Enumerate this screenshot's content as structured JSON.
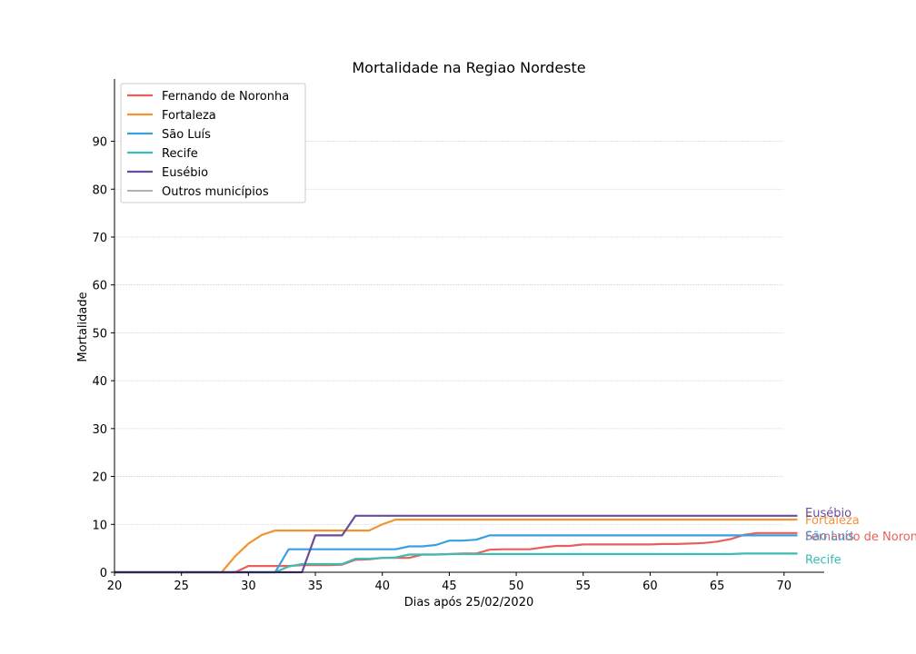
{
  "chart_data": {
    "type": "line",
    "title": "Mortalidade na Regiao Nordeste",
    "xlabel": "Dias após 25/02/2020",
    "ylabel": "Mortalidade",
    "xlim": [
      20,
      73
    ],
    "ylim": [
      0,
      103
    ],
    "xticks": [
      20,
      25,
      30,
      35,
      40,
      45,
      50,
      55,
      60,
      65,
      70
    ],
    "yticks": [
      0,
      10,
      20,
      30,
      40,
      50,
      60,
      70,
      80,
      90
    ],
    "grid": "horizontal",
    "legend_position": "top-left",
    "legend": [
      {
        "name": "Fernando de Noronha",
        "color": "#e8605a"
      },
      {
        "name": "Fortaleza",
        "color": "#f39433"
      },
      {
        "name": "São Luís",
        "color": "#3a9fdf"
      },
      {
        "name": "Recife",
        "color": "#3dbcb3"
      },
      {
        "name": "Eusébio",
        "color": "#6a4c9c"
      },
      {
        "name": "Outros municípios",
        "color": "#999999"
      }
    ],
    "series": [
      {
        "name": "Fernando de Noronha",
        "color": "#e8605a",
        "x": [
          20,
          21,
          22,
          23,
          24,
          25,
          26,
          27,
          28,
          29,
          30,
          31,
          32,
          33,
          34,
          35,
          36,
          37,
          38,
          39,
          40,
          41,
          42,
          43,
          44,
          45,
          46,
          47,
          48,
          49,
          50,
          51,
          52,
          53,
          54,
          55,
          56,
          57,
          58,
          59,
          60,
          61,
          62,
          63,
          64,
          65,
          66,
          67,
          68,
          69,
          70,
          71
        ],
        "y": [
          0,
          0,
          0,
          0,
          0,
          0,
          0,
          0,
          0,
          0,
          1.3,
          1.3,
          1.3,
          1.3,
          1.5,
          1.5,
          1.5,
          1.6,
          2.6,
          2.7,
          3.0,
          3.0,
          3.0,
          3.7,
          3.7,
          3.8,
          3.9,
          3.9,
          4.7,
          4.8,
          4.8,
          4.8,
          5.2,
          5.5,
          5.5,
          5.8,
          5.8,
          5.8,
          5.8,
          5.8,
          5.8,
          5.9,
          5.9,
          6.0,
          6.1,
          6.4,
          6.9,
          7.8,
          8.2,
          8.2,
          8.2,
          8.2
        ],
        "end_label": "Fernando de Noronha"
      },
      {
        "name": "Fortaleza",
        "color": "#f39433",
        "x": [
          20,
          21,
          22,
          23,
          24,
          25,
          26,
          27,
          28,
          29,
          30,
          31,
          32,
          33,
          34,
          35,
          36,
          37,
          38,
          39,
          40,
          41,
          42,
          43,
          44,
          45,
          46,
          47,
          48,
          49,
          50,
          51,
          52,
          53,
          54,
          55,
          56,
          57,
          58,
          59,
          60,
          61,
          62,
          63,
          64,
          65,
          66,
          67,
          68,
          69,
          70,
          71
        ],
        "y": [
          0,
          0,
          0,
          0,
          0,
          0,
          0,
          0,
          0,
          3.3,
          6.0,
          7.8,
          8.7,
          8.7,
          8.7,
          8.7,
          8.7,
          8.7,
          8.7,
          8.7,
          10.0,
          11.0,
          11.0,
          11.0,
          11.0,
          11.0,
          11.0,
          11.0,
          11.0,
          11.0,
          11.0,
          11.0,
          11.0,
          11.0,
          11.0,
          11.0,
          11.0,
          11.0,
          11.0,
          11.0,
          11.0,
          11.0,
          11.0,
          11.0,
          11.0,
          11.0,
          11.0,
          11.0,
          11.0,
          11.0,
          11.0,
          11.0
        ],
        "end_label": "Fortaleza"
      },
      {
        "name": "São Luís",
        "color": "#3a9fdf",
        "x": [
          20,
          21,
          22,
          23,
          24,
          25,
          26,
          27,
          28,
          29,
          30,
          31,
          32,
          33,
          34,
          35,
          36,
          37,
          38,
          39,
          40,
          41,
          42,
          43,
          44,
          45,
          46,
          47,
          48,
          49,
          50,
          51,
          52,
          53,
          54,
          55,
          56,
          57,
          58,
          59,
          60,
          61,
          62,
          63,
          64,
          65,
          66,
          67,
          68,
          69,
          70,
          71
        ],
        "y": [
          0,
          0,
          0,
          0,
          0,
          0,
          0,
          0,
          0,
          0,
          0,
          0,
          0,
          4.8,
          4.8,
          4.8,
          4.8,
          4.8,
          4.8,
          4.8,
          4.8,
          4.8,
          5.4,
          5.4,
          5.7,
          6.6,
          6.6,
          6.8,
          7.7,
          7.7,
          7.7,
          7.7,
          7.7,
          7.7,
          7.7,
          7.7,
          7.7,
          7.7,
          7.7,
          7.7,
          7.7,
          7.7,
          7.7,
          7.7,
          7.7,
          7.7,
          7.7,
          7.7,
          7.7,
          7.7,
          7.7,
          7.7
        ],
        "end_label": "São Luís"
      },
      {
        "name": "Recife",
        "color": "#3dbcb3",
        "x": [
          20,
          21,
          22,
          23,
          24,
          25,
          26,
          27,
          28,
          29,
          30,
          31,
          32,
          33,
          34,
          35,
          36,
          37,
          38,
          39,
          40,
          41,
          42,
          43,
          44,
          45,
          46,
          47,
          48,
          49,
          50,
          51,
          52,
          53,
          54,
          55,
          56,
          57,
          58,
          59,
          60,
          61,
          62,
          63,
          64,
          65,
          66,
          67,
          68,
          69,
          70,
          71
        ],
        "y": [
          0,
          0,
          0,
          0,
          0,
          0,
          0,
          0,
          0,
          0,
          0,
          0,
          0,
          1.2,
          1.7,
          1.7,
          1.7,
          1.7,
          2.8,
          2.8,
          3.0,
          3.1,
          3.7,
          3.7,
          3.7,
          3.8,
          3.8,
          3.8,
          3.8,
          3.8,
          3.8,
          3.8,
          3.8,
          3.8,
          3.8,
          3.8,
          3.8,
          3.8,
          3.8,
          3.8,
          3.8,
          3.8,
          3.8,
          3.8,
          3.8,
          3.8,
          3.8,
          3.9,
          3.9,
          3.9,
          3.9,
          3.9
        ],
        "end_label": "Recife"
      },
      {
        "name": "Eusébio",
        "color": "#6a4c9c",
        "x": [
          20,
          21,
          22,
          23,
          24,
          25,
          26,
          27,
          28,
          29,
          30,
          31,
          32,
          33,
          34,
          35,
          36,
          37,
          38,
          39,
          40,
          41,
          42,
          43,
          44,
          45,
          46,
          47,
          48,
          49,
          50,
          51,
          52,
          53,
          54,
          55,
          56,
          57,
          58,
          59,
          60,
          61,
          62,
          63,
          64,
          65,
          66,
          67,
          68,
          69,
          70,
          71
        ],
        "y": [
          0,
          0,
          0,
          0,
          0,
          0,
          0,
          0,
          0,
          0,
          0,
          0,
          0,
          0,
          0,
          7.7,
          7.7,
          7.7,
          11.8,
          11.8,
          11.8,
          11.8,
          11.8,
          11.8,
          11.8,
          11.8,
          11.8,
          11.8,
          11.8,
          11.8,
          11.8,
          11.8,
          11.8,
          11.8,
          11.8,
          11.8,
          11.8,
          11.8,
          11.8,
          11.8,
          11.8,
          11.8,
          11.8,
          11.8,
          11.8,
          11.8,
          11.8,
          11.8,
          11.8,
          11.8,
          11.8,
          11.8
        ],
        "end_label": "Eusébio"
      }
    ]
  }
}
